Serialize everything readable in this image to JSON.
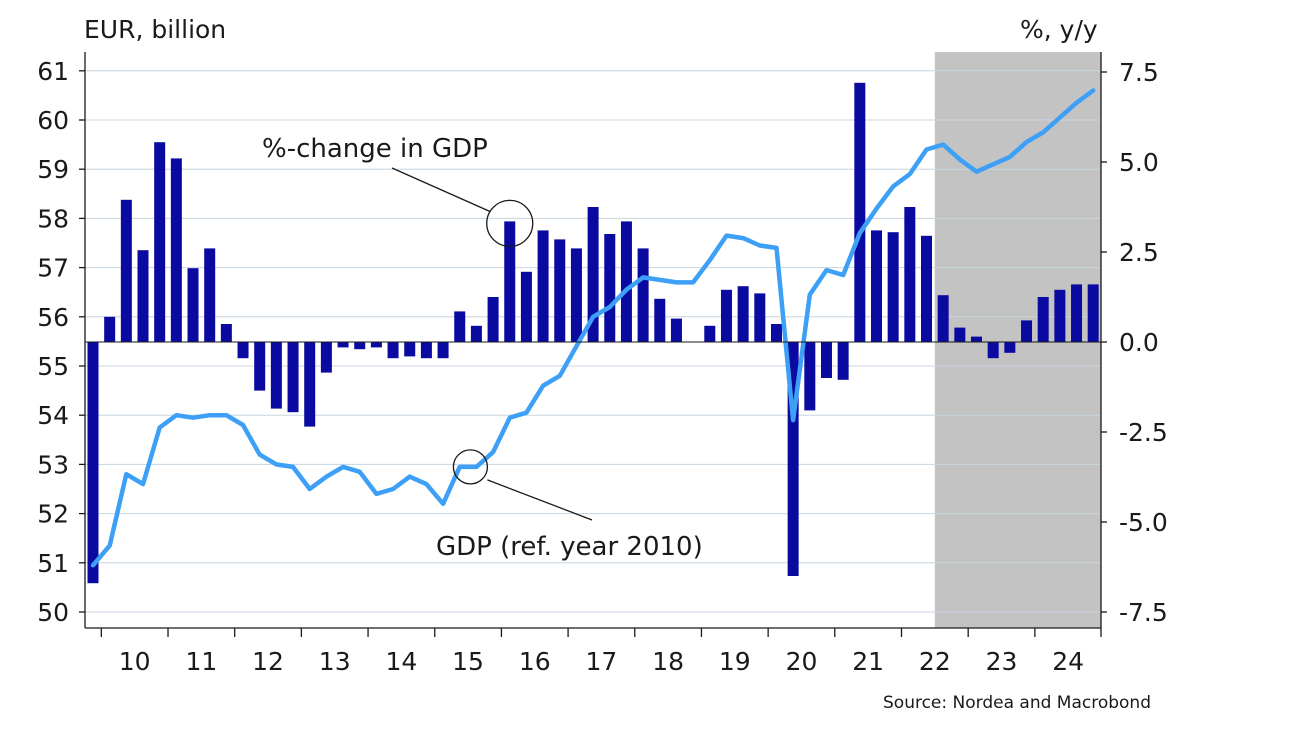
{
  "chart_data": {
    "type": "bar+line",
    "left_axis_unit": "EUR, billion",
    "right_axis_unit": "%, y/y",
    "source": "Source: Nordea and Macrobond",
    "left_axis": {
      "range": [
        50,
        61
      ],
      "ticks": [
        "50",
        "51",
        "52",
        "53",
        "54",
        "55",
        "56",
        "57",
        "58",
        "59",
        "60",
        "61"
      ]
    },
    "right_axis": {
      "range": [
        -7.5,
        7.5
      ],
      "ticks": [
        "-7.5",
        "-5.0",
        "-2.5",
        "0.0",
        "2.5",
        "5.0",
        "7.5"
      ]
    },
    "x_labels": [
      "10",
      "11",
      "12",
      "13",
      "14",
      "15",
      "16",
      "17",
      "18",
      "19",
      "20",
      "21",
      "22",
      "23",
      "24"
    ],
    "x_start": "2009-Q4",
    "forecast_shading_from": "2022-Q3",
    "annotations": [
      {
        "text": "%-change in GDP",
        "points_to": "bar 2016-Q1"
      },
      {
        "text": "GDP (ref. year 2010)",
        "points_to": "line 2015-Q3"
      }
    ],
    "series": [
      {
        "name": "GDP (ref. year 2010)",
        "axis": "left",
        "kind": "line",
        "color": "#3d9ff5",
        "values": [
          50.95,
          51.35,
          52.8,
          52.6,
          53.75,
          54.0,
          53.95,
          54.0,
          54.0,
          53.8,
          53.2,
          53.0,
          52.95,
          52.5,
          52.75,
          52.95,
          52.85,
          52.4,
          52.5,
          52.75,
          52.6,
          52.2,
          52.95,
          52.95,
          53.25,
          53.95,
          54.05,
          54.6,
          54.8,
          55.4,
          56.0,
          56.2,
          56.55,
          56.8,
          56.75,
          56.7,
          56.7,
          57.15,
          57.65,
          57.6,
          57.45,
          57.4,
          53.9,
          56.45,
          56.95,
          56.85,
          57.7,
          58.2,
          58.65,
          58.9,
          59.4,
          59.5,
          59.2,
          58.95,
          59.1,
          59.25,
          59.55,
          59.75,
          60.05,
          60.35,
          60.6
        ]
      },
      {
        "name": "%-change in GDP",
        "axis": "right",
        "kind": "bar",
        "color": "#0a0aa0",
        "values": [
          -6.7,
          0.7,
          3.95,
          2.55,
          5.55,
          5.1,
          2.05,
          2.6,
          0.5,
          -0.45,
          -1.35,
          -1.85,
          -1.95,
          -2.35,
          -0.85,
          -0.15,
          -0.2,
          -0.15,
          -0.45,
          -0.4,
          -0.45,
          -0.45,
          0.85,
          0.45,
          1.25,
          3.35,
          1.95,
          3.1,
          2.85,
          2.6,
          3.75,
          3.0,
          3.35,
          2.6,
          1.2,
          0.65,
          0.0,
          0.45,
          1.45,
          1.55,
          1.35,
          0.5,
          -6.5,
          -1.9,
          -1.0,
          -1.05,
          7.2,
          3.1,
          3.05,
          3.75,
          2.95,
          1.3,
          0.4,
          0.15,
          -0.45,
          -0.3,
          0.6,
          1.25,
          1.45,
          1.6,
          1.6
        ]
      }
    ]
  }
}
